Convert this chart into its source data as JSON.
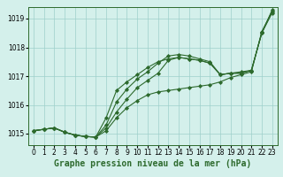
{
  "title": "Graphe pression niveau de la mer (hPa)",
  "xlabel_hours": [
    0,
    1,
    2,
    3,
    4,
    5,
    6,
    7,
    8,
    9,
    10,
    11,
    12,
    13,
    14,
    15,
    16,
    17,
    18,
    19,
    20,
    21,
    22,
    23
  ],
  "line1": [
    1015.1,
    1015.15,
    1015.2,
    1015.05,
    1014.95,
    1014.9,
    1014.88,
    1015.1,
    1015.55,
    1015.9,
    1016.15,
    1016.35,
    1016.45,
    1016.5,
    1016.55,
    1016.6,
    1016.65,
    1016.7,
    1016.8,
    1016.95,
    1017.05,
    1017.15,
    1018.55,
    1019.25
  ],
  "line2": [
    1015.1,
    1015.15,
    1015.2,
    1015.05,
    1014.95,
    1014.9,
    1014.88,
    1015.2,
    1015.75,
    1016.2,
    1016.6,
    1016.85,
    1017.1,
    1017.55,
    1017.65,
    1017.6,
    1017.55,
    1017.45,
    1017.05,
    1017.1,
    1017.1,
    1017.2,
    1018.5,
    1019.2
  ],
  "line3": [
    1015.1,
    1015.15,
    1015.2,
    1015.05,
    1014.95,
    1014.9,
    1014.88,
    1015.3,
    1016.1,
    1016.55,
    1016.9,
    1017.15,
    1017.45,
    1017.7,
    1017.75,
    1017.7,
    1017.6,
    1017.5,
    1017.05,
    1017.1,
    1017.1,
    1017.2,
    1018.5,
    1019.25
  ],
  "line4": [
    1015.1,
    1015.15,
    1015.2,
    1015.05,
    1014.95,
    1014.9,
    1014.88,
    1015.55,
    1016.5,
    1016.8,
    1017.05,
    1017.3,
    1017.5,
    1017.6,
    1017.65,
    1017.6,
    1017.55,
    1017.45,
    1017.05,
    1017.1,
    1017.15,
    1017.2,
    1018.5,
    1019.3
  ],
  "line_color": "#2d6a2d",
  "marker": "D",
  "markersize": 2.0,
  "linewidth": 0.8,
  "bg_color": "#d4f0eb",
  "grid_color": "#9ecfca",
  "ylim": [
    1014.6,
    1019.4
  ],
  "xlim": [
    -0.5,
    23.5
  ],
  "yticks": [
    1015,
    1016,
    1017,
    1018,
    1019
  ],
  "xticks": [
    0,
    1,
    2,
    3,
    4,
    5,
    6,
    7,
    8,
    9,
    10,
    11,
    12,
    13,
    14,
    15,
    16,
    17,
    18,
    19,
    20,
    21,
    22,
    23
  ],
  "title_fontsize": 7,
  "tick_fontsize": 5.5
}
